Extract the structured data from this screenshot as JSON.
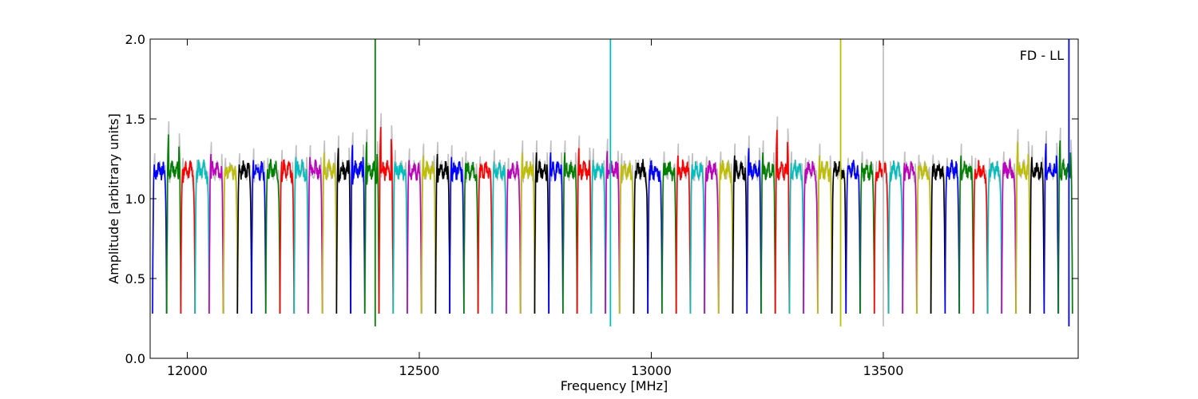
{
  "chart_data": {
    "type": "line",
    "title": "",
    "xlabel": "Frequency [MHz]",
    "ylabel": "Amplitude [arbitrary units]",
    "annotation": "FD - LL",
    "xlim": [
      11920,
      13920
    ],
    "ylim": [
      0.0,
      2.0
    ],
    "xticks": [
      12000,
      12500,
      13000,
      13500
    ],
    "yticks": [
      0.0,
      0.5,
      1.0,
      1.5,
      2.0
    ],
    "xtick_labels": [
      "12000",
      "12500",
      "13000",
      "13500"
    ],
    "ytick_labels": [
      "0.0",
      "0.5",
      "1.0",
      "1.5",
      "2.0"
    ],
    "grid": false,
    "legend": "none",
    "series_colors": [
      "#0000ff",
      "#008000",
      "#ff0000",
      "#00bfbf",
      "#bf00bf",
      "#bfbf00",
      "#000000"
    ],
    "background_color": "#c0c0c0",
    "channel": {
      "start_freq": 11925,
      "width": 30.5,
      "count": 65,
      "shape": "bandpass",
      "top_level": 1.18,
      "edge_level": 0.28
    },
    "channel_peaks": [
      1.27,
      1.47,
      1.24,
      1.23,
      1.34,
      1.24,
      1.27,
      1.3,
      1.24,
      1.29,
      1.32,
      1.32,
      1.35,
      1.38,
      1.4,
      1.42,
      1.52,
      1.29,
      1.3,
      1.33,
      1.34,
      1.32,
      1.28,
      1.25,
      1.29,
      1.24,
      1.35,
      1.35,
      1.35,
      1.35,
      1.38,
      1.3,
      1.36,
      1.27,
      1.23,
      1.24,
      1.28,
      1.33,
      1.27,
      1.25,
      1.28,
      1.33,
      1.38,
      1.35,
      1.5,
      1.28,
      1.24,
      1.33,
      1.22,
      1.24,
      1.28,
      1.22,
      1.22,
      1.28,
      1.26,
      1.26,
      1.24,
      1.33,
      1.24,
      1.24,
      1.28,
      1.42,
      1.32,
      1.41,
      1.43
    ],
    "spikes": [
      {
        "x": 12405,
        "y": 2.0,
        "color": "#008000"
      },
      {
        "x": 12912,
        "y": 2.0,
        "color": "#00bfbf"
      },
      {
        "x": 13408,
        "y": 2.0,
        "color": "#bfbf00"
      },
      {
        "x": 13500,
        "y": 2.0,
        "color": "#c0c0c0"
      },
      {
        "x": 13900,
        "y": 2.0,
        "color": "#0000ff"
      }
    ]
  }
}
